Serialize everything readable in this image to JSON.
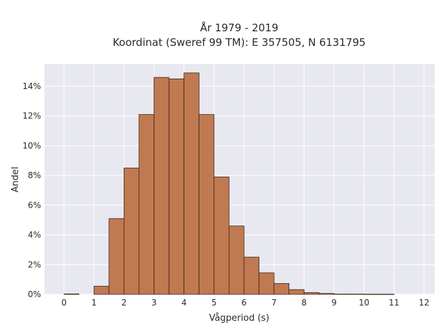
{
  "chart_data": {
    "type": "bar",
    "title_line1": "År 1979 - 2019",
    "title_line2": "Koordinat (Sweref 99 TM): E 357505, N 6131795",
    "xlabel": "Vågperiod (s)",
    "ylabel": "Andel",
    "xlim": [
      -0.65,
      12.35
    ],
    "ylim": [
      0,
      0.155
    ],
    "x_ticks": [
      0,
      1,
      2,
      3,
      4,
      5,
      6,
      7,
      8,
      9,
      10,
      11,
      12
    ],
    "x_tick_labels": [
      "0",
      "1",
      "2",
      "3",
      "4",
      "5",
      "6",
      "7",
      "8",
      "9",
      "10",
      "11",
      "12"
    ],
    "y_ticks": [
      0,
      0.02,
      0.04,
      0.06,
      0.08,
      0.1,
      0.12,
      0.14
    ],
    "y_tick_labels": [
      "0%",
      "2%",
      "4%",
      "6%",
      "8%",
      "10%",
      "12%",
      "14%"
    ],
    "bin_width": 0.5,
    "bins": [
      {
        "x0": 0.0,
        "x1": 0.5,
        "value": 0.0003
      },
      {
        "x0": 1.0,
        "x1": 1.5,
        "value": 0.0055
      },
      {
        "x0": 1.5,
        "x1": 2.0,
        "value": 0.051
      },
      {
        "x0": 2.0,
        "x1": 2.5,
        "value": 0.085
      },
      {
        "x0": 2.5,
        "x1": 3.0,
        "value": 0.121
      },
      {
        "x0": 3.0,
        "x1": 3.5,
        "value": 0.146
      },
      {
        "x0": 3.5,
        "x1": 4.0,
        "value": 0.145
      },
      {
        "x0": 4.0,
        "x1": 4.5,
        "value": 0.149
      },
      {
        "x0": 4.5,
        "x1": 5.0,
        "value": 0.121
      },
      {
        "x0": 5.0,
        "x1": 5.5,
        "value": 0.079
      },
      {
        "x0": 5.5,
        "x1": 6.0,
        "value": 0.046
      },
      {
        "x0": 6.0,
        "x1": 6.5,
        "value": 0.025
      },
      {
        "x0": 6.5,
        "x1": 7.0,
        "value": 0.0145
      },
      {
        "x0": 7.0,
        "x1": 7.5,
        "value": 0.0073
      },
      {
        "x0": 7.5,
        "x1": 8.0,
        "value": 0.0032
      },
      {
        "x0": 8.0,
        "x1": 8.5,
        "value": 0.0012
      },
      {
        "x0": 8.5,
        "x1": 9.0,
        "value": 0.0006
      },
      {
        "x0": 9.0,
        "x1": 9.5,
        "value": 0.0002
      },
      {
        "x0": 9.5,
        "x1": 10.0,
        "value": 0.0002
      },
      {
        "x0": 10.0,
        "x1": 10.5,
        "value": 0.0001
      },
      {
        "x0": 10.5,
        "x1": 11.0,
        "value": 0.0001
      }
    ],
    "grid": true,
    "colors": {
      "bar_fill": "#c07a52",
      "bar_edge": "#3a2418",
      "plot_background": "#e8e8f0",
      "grid": "#ffffff"
    }
  }
}
